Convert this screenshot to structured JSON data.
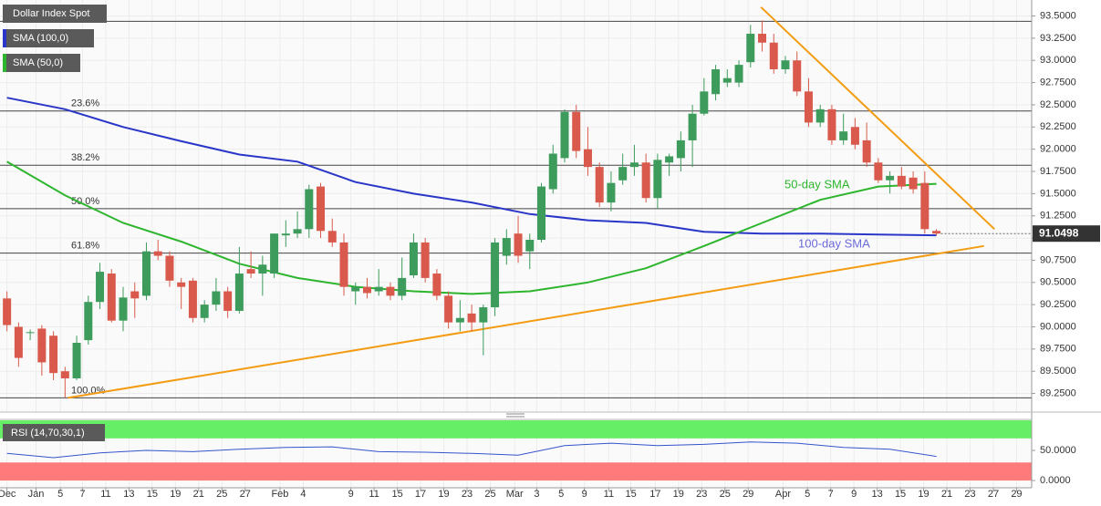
{
  "chart_data": {
    "type": "candlestick",
    "title": "Dollar Index Spot",
    "up_color": "#3d9b5c",
    "down_color": "#d95a4c",
    "xlim": [
      -0.6,
      88.2
    ],
    "ylim": [
      89.04,
      93.68
    ],
    "grid": true,
    "xticks": [
      {
        "value": 0,
        "label": "Dec"
      },
      {
        "value": 2.5,
        "label": "Jan"
      },
      {
        "value": 4.6,
        "label": "5"
      },
      {
        "value": 6.5,
        "label": "7"
      },
      {
        "value": 8.5,
        "label": "11"
      },
      {
        "value": 10.5,
        "label": "13"
      },
      {
        "value": 12.5,
        "label": "15"
      },
      {
        "value": 14.5,
        "label": "19"
      },
      {
        "value": 16.5,
        "label": "21"
      },
      {
        "value": 18.5,
        "label": "25"
      },
      {
        "value": 20.5,
        "label": "27"
      },
      {
        "value": 23.5,
        "label": "Feb"
      },
      {
        "value": 25.5,
        "label": "4"
      },
      {
        "value": 29.6,
        "label": "9"
      },
      {
        "value": 31.6,
        "label": "11"
      },
      {
        "value": 33.6,
        "label": "15"
      },
      {
        "value": 35.6,
        "label": "17"
      },
      {
        "value": 37.6,
        "label": "19"
      },
      {
        "value": 39.6,
        "label": "23"
      },
      {
        "value": 41.6,
        "label": "25"
      },
      {
        "value": 43.7,
        "label": "Mar"
      },
      {
        "value": 45.6,
        "label": "3"
      },
      {
        "value": 47.7,
        "label": "5"
      },
      {
        "value": 49.7,
        "label": "9"
      },
      {
        "value": 51.8,
        "label": "11"
      },
      {
        "value": 53.7,
        "label": "15"
      },
      {
        "value": 55.8,
        "label": "17"
      },
      {
        "value": 57.8,
        "label": "19"
      },
      {
        "value": 59.8,
        "label": "23"
      },
      {
        "value": 61.8,
        "label": "25"
      },
      {
        "value": 63.8,
        "label": "29"
      },
      {
        "value": 66.8,
        "label": "Apr"
      },
      {
        "value": 68.9,
        "label": "5"
      },
      {
        "value": 70.9,
        "label": "7"
      },
      {
        "value": 72.9,
        "label": "9"
      },
      {
        "value": 74.9,
        "label": "13"
      },
      {
        "value": 76.9,
        "label": "15"
      },
      {
        "value": 78.9,
        "label": "19"
      },
      {
        "value": 80.9,
        "label": "21"
      },
      {
        "value": 82.9,
        "label": "23"
      },
      {
        "value": 84.9,
        "label": "27"
      },
      {
        "value": 86.9,
        "label": "29"
      }
    ],
    "yticks": [
      {
        "value": 89.25,
        "label": "89.2500"
      },
      {
        "value": 89.5,
        "label": "89.5000"
      },
      {
        "value": 89.75,
        "label": "89.7500"
      },
      {
        "value": 90,
        "label": "90.0000"
      },
      {
        "value": 90.25,
        "label": "90.2500"
      },
      {
        "value": 90.5,
        "label": "90.5000"
      },
      {
        "value": 90.75,
        "label": "90.7500"
      },
      {
        "value": 91,
        "label": "91.0000"
      },
      {
        "value": 91.25,
        "label": "91.2500"
      },
      {
        "value": 91.5,
        "label": "91.5000"
      },
      {
        "value": 91.75,
        "label": "91.7500"
      },
      {
        "value": 92,
        "label": "92.0000"
      },
      {
        "value": 92.25,
        "label": "92.2500"
      },
      {
        "value": 92.5,
        "label": "92.5000"
      },
      {
        "value": 92.75,
        "label": "92.7500"
      },
      {
        "value": 93,
        "label": "93.0000"
      },
      {
        "value": 93.25,
        "label": "93.2500"
      },
      {
        "value": 93.5,
        "label": "93.5000"
      }
    ],
    "candles": {
      "open": [
        90.32,
        90.0,
        89.93,
        89.98,
        89.9,
        89.5,
        89.42,
        89.85,
        90.28,
        90.6,
        90.07,
        90.4,
        90.35,
        90.85,
        90.8,
        90.5,
        90.52,
        90.1,
        90.25,
        90.4,
        90.18,
        90.65,
        90.6,
        90.6,
        91.03,
        91.05,
        91.1,
        91.58,
        91.08,
        90.95,
        90.4,
        90.45,
        90.4,
        90.45,
        90.35,
        90.58,
        90.95,
        90.6,
        90.35,
        90.05,
        90.15,
        90.05,
        90.22,
        90.8,
        91.05,
        90.85,
        90.98,
        91.55,
        91.9,
        92.42,
        92.0,
        91.8,
        91.4,
        91.65,
        91.8,
        91.85,
        91.45,
        91.85,
        91.9,
        92.1,
        92.4,
        92.62,
        92.75,
        92.75,
        92.98,
        93.3,
        93.2,
        92.9,
        93.0,
        92.65,
        92.3,
        92.45,
        92.1,
        92.25,
        92.1,
        91.85,
        91.65,
        91.7,
        91.68,
        91.62,
        91.08
      ],
      "high": [
        90.4,
        90.05,
        89.97,
        90.02,
        89.95,
        89.55,
        89.9,
        90.35,
        90.72,
        90.65,
        90.45,
        90.5,
        90.95,
        90.98,
        90.85,
        90.55,
        90.55,
        90.3,
        90.55,
        90.45,
        90.9,
        90.85,
        90.8,
        91.05,
        91.2,
        91.3,
        91.6,
        91.62,
        91.22,
        91.05,
        90.5,
        90.55,
        90.65,
        90.5,
        90.78,
        91.05,
        91.0,
        90.65,
        90.4,
        90.3,
        90.25,
        90.25,
        91.0,
        91.1,
        91.25,
        91.05,
        91.62,
        92.05,
        92.45,
        92.5,
        92.25,
        91.85,
        91.75,
        91.95,
        92.05,
        91.95,
        91.95,
        91.95,
        92.2,
        92.5,
        92.8,
        92.95,
        92.9,
        93.0,
        93.4,
        93.45,
        93.3,
        93.05,
        93.1,
        92.8,
        92.5,
        92.5,
        92.4,
        92.35,
        92.3,
        91.9,
        91.75,
        91.8,
        91.75,
        91.75,
        91.1
      ],
      "low": [
        89.95,
        89.55,
        89.85,
        89.45,
        89.4,
        89.2,
        89.4,
        89.8,
        90.2,
        90.05,
        89.95,
        90.1,
        90.3,
        90.75,
        90.45,
        90.2,
        90.05,
        90.05,
        90.18,
        90.1,
        90.15,
        90.55,
        90.35,
        90.55,
        90.9,
        91.0,
        91.0,
        91.0,
        90.9,
        90.35,
        90.25,
        90.32,
        90.35,
        90.3,
        90.3,
        90.55,
        90.5,
        90.3,
        89.98,
        89.95,
        89.95,
        89.68,
        90.12,
        90.7,
        90.72,
        90.65,
        90.95,
        91.5,
        91.85,
        91.9,
        91.7,
        91.35,
        91.3,
        91.6,
        91.7,
        91.4,
        91.33,
        91.7,
        91.75,
        91.8,
        92.38,
        92.55,
        92.7,
        92.7,
        92.92,
        93.1,
        92.85,
        92.85,
        92.6,
        92.25,
        92.25,
        92.05,
        92.05,
        92.0,
        91.8,
        91.62,
        91.5,
        91.55,
        91.5,
        91.05,
        91.03
      ],
      "close": [
        90.02,
        89.65,
        89.94,
        89.6,
        89.48,
        89.42,
        89.82,
        90.28,
        90.62,
        90.07,
        90.33,
        90.32,
        90.85,
        90.8,
        90.52,
        90.45,
        90.1,
        90.25,
        90.4,
        90.18,
        90.6,
        90.6,
        90.7,
        91.05,
        91.05,
        91.1,
        91.55,
        91.08,
        90.95,
        90.45,
        90.45,
        90.38,
        90.45,
        90.35,
        90.55,
        90.95,
        90.55,
        90.35,
        90.05,
        90.1,
        90.05,
        90.22,
        90.95,
        91.0,
        90.8,
        90.98,
        91.58,
        91.95,
        92.42,
        91.98,
        91.8,
        91.4,
        91.62,
        91.8,
        91.85,
        91.45,
        91.88,
        91.92,
        92.1,
        92.4,
        92.65,
        92.9,
        92.8,
        92.95,
        93.3,
        93.2,
        92.9,
        93.0,
        92.65,
        92.3,
        92.45,
        92.1,
        92.2,
        92.05,
        91.85,
        91.65,
        91.7,
        91.58,
        91.55,
        91.1,
        91.0498
      ]
    },
    "series": [
      {
        "name": "SMA (100,0)",
        "color": "#2a36c8",
        "x": [
          0,
          5,
          10,
          15,
          20,
          25,
          30,
          35,
          40,
          45,
          50,
          55,
          60,
          65,
          70,
          75,
          80
        ],
        "values": [
          92.58,
          92.45,
          92.25,
          92.09,
          91.94,
          91.86,
          91.63,
          91.5,
          91.4,
          91.27,
          91.2,
          91.17,
          91.07,
          91.05,
          91.05,
          91.04,
          91.03
        ]
      },
      {
        "name": "SMA (50,0)",
        "color": "#2db52d",
        "x": [
          0,
          5,
          10,
          15,
          20,
          25,
          30,
          35,
          40,
          45,
          50,
          55,
          60,
          65,
          70,
          75,
          80
        ],
        "values": [
          91.86,
          91.48,
          91.17,
          90.96,
          90.71,
          90.55,
          90.45,
          90.4,
          90.37,
          90.4,
          90.5,
          90.66,
          90.91,
          91.17,
          91.43,
          91.58,
          91.61
        ]
      }
    ],
    "annotations": [
      {
        "text": "50-day SMA",
        "color": "#2db52d"
      },
      {
        "text": "100-day SMA",
        "color": "#6a6adb"
      }
    ],
    "levels": [
      {
        "label": null,
        "value": 93.44
      },
      {
        "label": "23.6%",
        "value": 92.43
      },
      {
        "label": "38.2%",
        "value": 91.82
      },
      {
        "label": "50.0%",
        "value": 91.33
      },
      {
        "label": "61.8%",
        "value": 90.83
      },
      {
        "label": "100.0%",
        "value": 89.2
      }
    ],
    "trendlines": [
      {
        "color": "#f39c12",
        "x": [
          64.9,
          85
        ],
        "y": [
          93.6,
          91.1
        ]
      },
      {
        "color": "#f39c12",
        "x": [
          5.25,
          84.1
        ],
        "y": [
          89.2,
          90.91
        ]
      }
    ],
    "rsi": {
      "name": "RSI (14,70,30,1)",
      "color": "#3355cc",
      "overbought": 70,
      "oversold": 30,
      "band_top": 100,
      "band_bottom": 0,
      "ylim": [
        -12,
        101.5
      ],
      "yticks": [
        {
          "value": 0,
          "label": "0.0000"
        },
        {
          "value": 50,
          "label": "50.0000"
        }
      ],
      "x": [
        0,
        4,
        8,
        12,
        16,
        20,
        24,
        28,
        32,
        36,
        40,
        44,
        48,
        52,
        56,
        60,
        64,
        68,
        72,
        76,
        80
      ],
      "values": [
        45,
        38,
        46,
        50,
        48,
        52,
        55,
        56,
        48,
        47,
        45,
        42,
        58,
        62,
        58,
        60,
        64,
        62,
        55,
        52,
        40
      ]
    }
  }
}
